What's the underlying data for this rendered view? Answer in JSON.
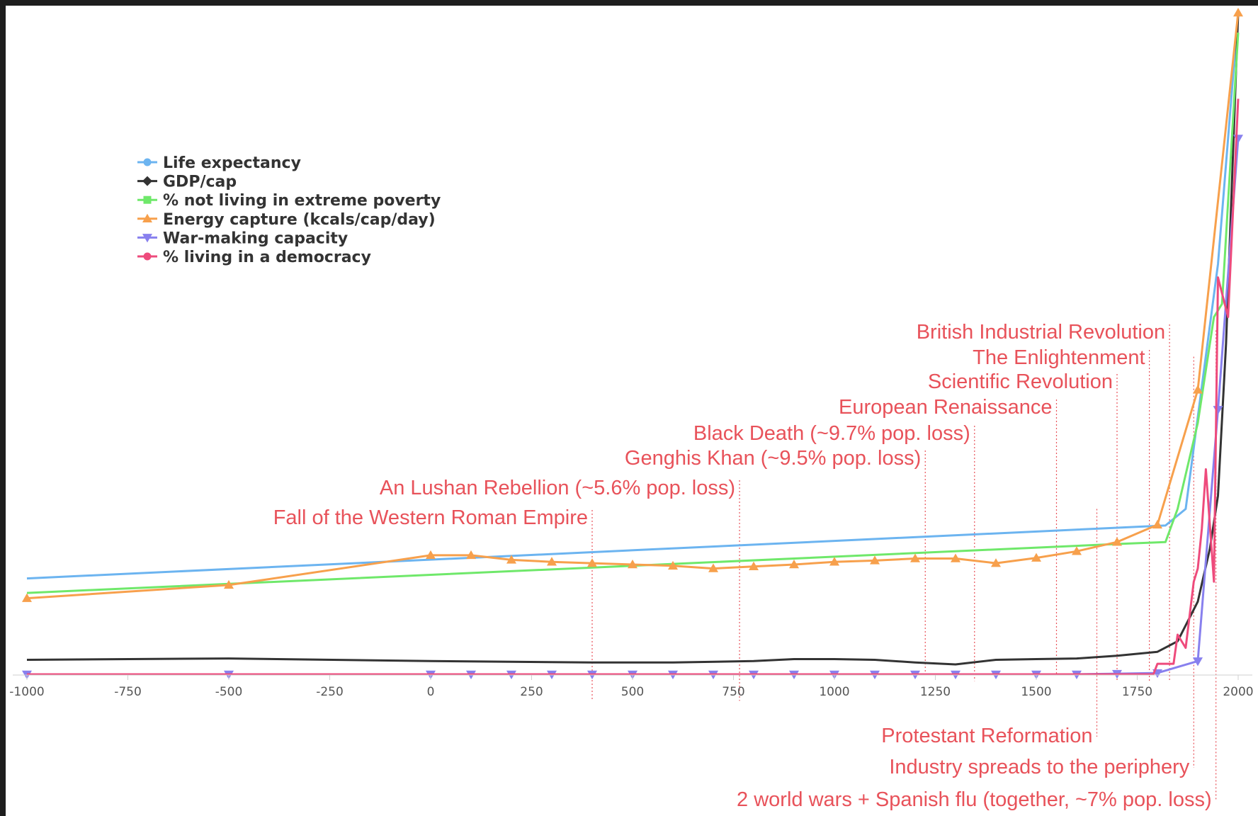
{
  "colors": {
    "life": "#6cb4f0",
    "gdp": "#333333",
    "poverty": "#6fe86a",
    "energy": "#f7a04c",
    "war": "#8880ee",
    "democracy": "#ee4b7c",
    "event": "#e8525a"
  },
  "chart_data": {
    "type": "line",
    "title": "",
    "xlabel": "",
    "ylabel": "",
    "xlim": [
      -1000,
      2000
    ],
    "ylim": [
      0,
      1
    ],
    "x_ticks": [
      "-1000",
      "-750",
      "-500",
      "-250",
      "0",
      "250",
      "500",
      "750",
      "1000",
      "1250",
      "1500",
      "1750",
      "2000"
    ],
    "grid": false,
    "legend_position": "top-left",
    "series": [
      {
        "name": "Life expectancy",
        "color": "#6cb4f0",
        "marker": "circle",
        "points": [
          [
            -1000,
            0.145
          ],
          [
            1820,
            0.225
          ],
          [
            1870,
            0.25
          ],
          [
            1950,
            0.62
          ],
          [
            2000,
            1.0
          ]
        ]
      },
      {
        "name": "GDP/cap",
        "color": "#333333",
        "marker": "diamond",
        "points": [
          [
            -1000,
            0.022
          ],
          [
            -500,
            0.024
          ],
          [
            0,
            0.02
          ],
          [
            400,
            0.018
          ],
          [
            600,
            0.018
          ],
          [
            800,
            0.02
          ],
          [
            900,
            0.023
          ],
          [
            1000,
            0.023
          ],
          [
            1100,
            0.022
          ],
          [
            1200,
            0.018
          ],
          [
            1300,
            0.015
          ],
          [
            1400,
            0.022
          ],
          [
            1500,
            0.023
          ],
          [
            1600,
            0.024
          ],
          [
            1700,
            0.028
          ],
          [
            1800,
            0.034
          ],
          [
            1850,
            0.05
          ],
          [
            1900,
            0.11
          ],
          [
            1930,
            0.19
          ],
          [
            1950,
            0.27
          ],
          [
            1970,
            0.5
          ],
          [
            2000,
            1.0
          ]
        ]
      },
      {
        "name": "% not living in extreme poverty",
        "color": "#6fe86a",
        "marker": "square",
        "points": [
          [
            -1000,
            0.123
          ],
          [
            1700,
            0.197
          ],
          [
            1820,
            0.2
          ],
          [
            1850,
            0.25
          ],
          [
            1900,
            0.38
          ],
          [
            1940,
            0.54
          ],
          [
            1960,
            0.56
          ],
          [
            2000,
            0.97
          ]
        ]
      },
      {
        "name": "Energy capture (kcals/cap/day)",
        "color": "#f7a04c",
        "marker": "triangle-up",
        "points": [
          [
            -1000,
            0.115
          ],
          [
            -500,
            0.135
          ],
          [
            0,
            0.18
          ],
          [
            100,
            0.18
          ],
          [
            200,
            0.173
          ],
          [
            300,
            0.17
          ],
          [
            400,
            0.168
          ],
          [
            500,
            0.166
          ],
          [
            600,
            0.164
          ],
          [
            700,
            0.16
          ],
          [
            800,
            0.163
          ],
          [
            900,
            0.166
          ],
          [
            1000,
            0.17
          ],
          [
            1100,
            0.172
          ],
          [
            1200,
            0.175
          ],
          [
            1300,
            0.175
          ],
          [
            1400,
            0.168
          ],
          [
            1500,
            0.176
          ],
          [
            1600,
            0.186
          ],
          [
            1700,
            0.2
          ],
          [
            1800,
            0.226
          ],
          [
            1900,
            0.43
          ],
          [
            2000,
            1.0
          ]
        ]
      },
      {
        "name": "War-making capacity",
        "color": "#8880ee",
        "marker": "triangle-down",
        "points": [
          [
            -1000,
            0.0
          ],
          [
            -500,
            0.0
          ],
          [
            0,
            0.0
          ],
          [
            100,
            0.0
          ],
          [
            200,
            0.0
          ],
          [
            300,
            0.0
          ],
          [
            400,
            0.0
          ],
          [
            500,
            0.0
          ],
          [
            600,
            0.0
          ],
          [
            700,
            0.0
          ],
          [
            800,
            0.0
          ],
          [
            900,
            0.0
          ],
          [
            1000,
            0.0
          ],
          [
            1100,
            0.0
          ],
          [
            1200,
            0.0
          ],
          [
            1300,
            0.0
          ],
          [
            1400,
            0.0
          ],
          [
            1500,
            0.0
          ],
          [
            1600,
            0.0
          ],
          [
            1700,
            0.001
          ],
          [
            1800,
            0.002
          ],
          [
            1900,
            0.02
          ],
          [
            1950,
            0.4
          ],
          [
            2000,
            0.81
          ]
        ]
      },
      {
        "name": "% living in a democracy",
        "color": "#ee4b7c",
        "marker": "circle",
        "points": [
          [
            -1000,
            0.0
          ],
          [
            1790,
            0.0
          ],
          [
            1800,
            0.016
          ],
          [
            1840,
            0.016
          ],
          [
            1850,
            0.06
          ],
          [
            1870,
            0.04
          ],
          [
            1890,
            0.14
          ],
          [
            1900,
            0.16
          ],
          [
            1910,
            0.22
          ],
          [
            1920,
            0.31
          ],
          [
            1940,
            0.14
          ],
          [
            1950,
            0.6
          ],
          [
            1975,
            0.54
          ],
          [
            2000,
            0.87
          ]
        ]
      }
    ],
    "annotations": [
      {
        "label": "Fall of the Western Roman Empire",
        "year": 400,
        "side": "top",
        "line_to": -0.04
      },
      {
        "label": "An Lushan Rebellion (~5.6% pop. loss)",
        "year": 765,
        "side": "top",
        "line_to": -0.04
      },
      {
        "label": "Genghis Khan (~9.5% pop. loss)",
        "year": 1225,
        "side": "top",
        "line_to": 0.0
      },
      {
        "label": "Black Death (~9.7% pop. loss)",
        "year": 1347,
        "side": "top",
        "line_to": -0.01
      },
      {
        "label": "European Renaissance",
        "year": 1550,
        "side": "top",
        "line_to": 0.0
      },
      {
        "label": "Scientific Revolution",
        "year": 1700,
        "side": "top",
        "line_to": -0.01
      },
      {
        "label": "The Enlightenment",
        "year": 1780,
        "side": "top",
        "line_to": -0.01
      },
      {
        "label": "British Industrial Revolution",
        "year": 1830,
        "side": "top",
        "line_to": -0.01
      },
      {
        "label": "Protestant Reformation",
        "year": 1650,
        "side": "bottom",
        "line_from": 0.25
      },
      {
        "label": "Industry spreads to the periphery",
        "year": 1890,
        "side": "bottom",
        "line_from": 0.48
      },
      {
        "label": "2 world wars + Spanish flu (together, ~7%  pop. loss)",
        "year": 1945,
        "side": "bottom",
        "line_from": 0.52
      }
    ]
  }
}
